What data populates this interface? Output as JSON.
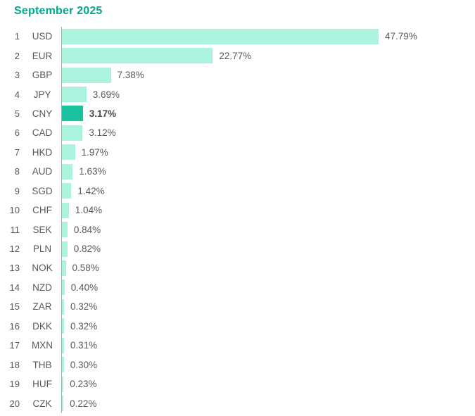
{
  "title": "September 2025",
  "colors": {
    "title": "#00A78F",
    "bar": "#ABF2DF",
    "bar_highlight": "#1AC39E",
    "text": "#595959",
    "axis": "#A9A9A9"
  },
  "chart_data": {
    "type": "bar",
    "orientation": "horizontal",
    "title": "September 2025",
    "ranks": [
      1,
      2,
      3,
      4,
      5,
      6,
      7,
      8,
      9,
      10,
      11,
      12,
      13,
      14,
      15,
      16,
      17,
      18,
      19,
      20
    ],
    "categories": [
      "USD",
      "EUR",
      "GBP",
      "JPY",
      "CNY",
      "CAD",
      "HKD",
      "AUD",
      "SGD",
      "CHF",
      "SEK",
      "PLN",
      "NOK",
      "NZD",
      "ZAR",
      "DKK",
      "MXN",
      "THB",
      "HUF",
      "CZK"
    ],
    "values": [
      47.79,
      22.77,
      7.38,
      3.69,
      3.17,
      3.12,
      1.97,
      1.63,
      1.42,
      1.04,
      0.84,
      0.82,
      0.58,
      0.4,
      0.32,
      0.32,
      0.31,
      0.3,
      0.23,
      0.22
    ],
    "value_labels": [
      "47.79%",
      "22.77%",
      "7.38%",
      "3.69%",
      "3.17%",
      "3.12%",
      "1.97%",
      "1.63%",
      "1.42%",
      "1.04%",
      "0.84%",
      "0.82%",
      "0.58%",
      "0.40%",
      "0.32%",
      "0.32%",
      "0.31%",
      "0.30%",
      "0.23%",
      "0.22%"
    ],
    "highlighted_category": "CNY",
    "xlim": [
      0,
      50
    ],
    "grid": false,
    "legend": false,
    "bar_labels": "outside-end",
    "row_labels": "rank-and-currency-code"
  }
}
